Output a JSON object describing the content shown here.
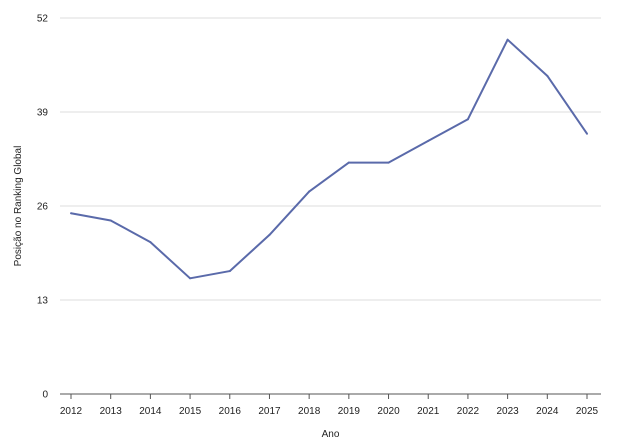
{
  "chart_data": {
    "type": "line",
    "xlabel": "Ano",
    "ylabel": "Posição no Ranking Global",
    "categories": [
      "2012",
      "2013",
      "2014",
      "2015",
      "2016",
      "2017",
      "2018",
      "2019",
      "2020",
      "2021",
      "2022",
      "2023",
      "2024",
      "2025"
    ],
    "series": [
      {
        "values": [
          25,
          24,
          21,
          16,
          17,
          22,
          28,
          32,
          32,
          35,
          38,
          49,
          44,
          36
        ],
        "color": "#5a6aaa"
      }
    ],
    "ylim": [
      0,
      52
    ],
    "yticks": [
      0,
      13,
      26,
      39,
      52
    ],
    "grid": true,
    "legend": "none"
  }
}
